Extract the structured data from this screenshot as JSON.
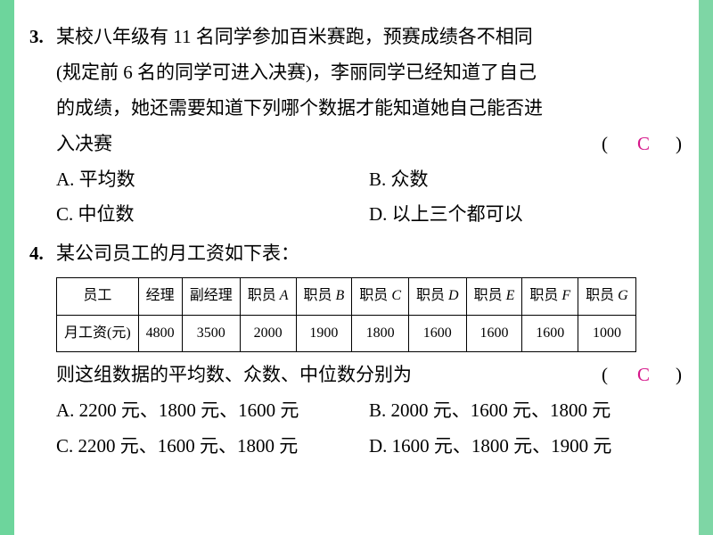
{
  "q3": {
    "number": "3.",
    "text_l1": "某校八年级有 11 名同学参加百米赛跑，预赛成绩各不相同",
    "text_l2": "(规定前 6 名的同学可进入决赛)，李丽同学已经知道了自己",
    "text_l3": "的成绩，她还需要知道下列哪个数据才能知道她自己能否进",
    "text_l4": "入决赛",
    "answer": "C",
    "optA": "A. 平均数",
    "optB": "B. 众数",
    "optC": "C. 中位数",
    "optD": "D. 以上三个都可以"
  },
  "q4": {
    "number": "4.",
    "intro": "某公司员工的月工资如下表：",
    "table": {
      "headers": [
        "员工",
        "经理",
        "副经理",
        "职员 A",
        "职员 B",
        "职员 C",
        "职员 D",
        "职员 E",
        "职员 F",
        "职员 G"
      ],
      "row_label": "月工资(元)",
      "values": [
        "4800",
        "3500",
        "2000",
        "1900",
        "1800",
        "1600",
        "1600",
        "1600",
        "1000"
      ]
    },
    "after": "则这组数据的平均数、众数、中位数分别为",
    "answer": "C",
    "optA": "A. 2200 元、1800 元、1600 元",
    "optB": "B. 2000 元、1600 元、1800 元",
    "optC": "C. 2200 元、1600 元、1800 元",
    "optD": "D. 1600 元、1800 元、1900 元"
  }
}
